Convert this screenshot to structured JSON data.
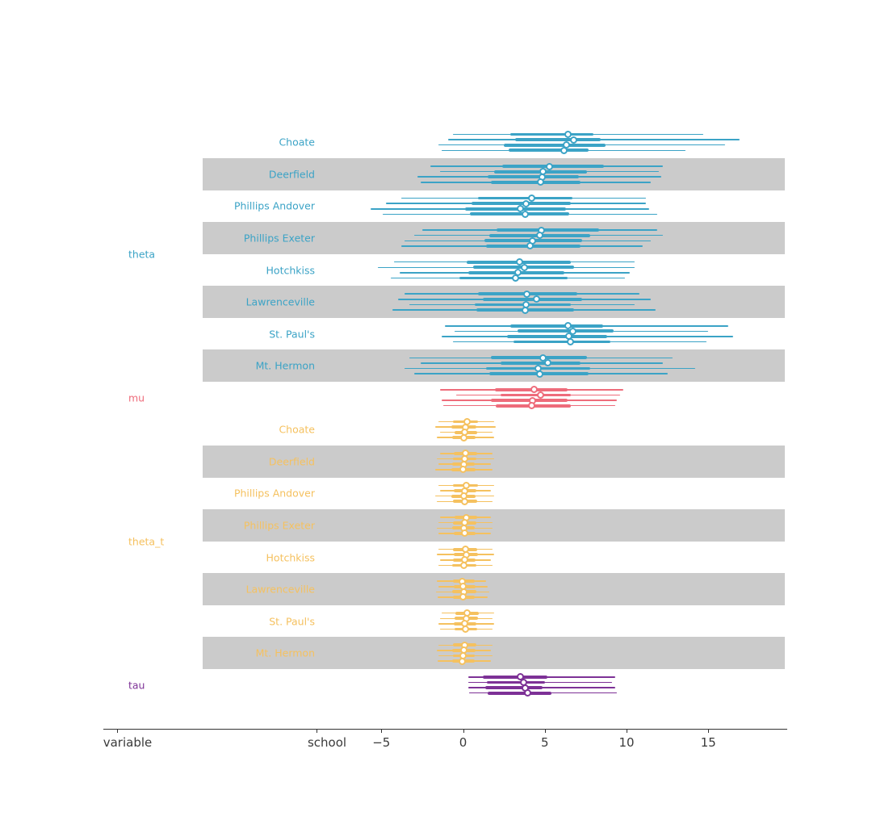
{
  "colors": {
    "blue": "#3BA3C6",
    "red": "#EE6C7B",
    "orange": "#F5C15F",
    "purple": "#7D3196",
    "band": "#CBCBCB",
    "axis_text": "#3A3A3A"
  },
  "chart_data": {
    "type": "forest",
    "description": "Forest plot of posterior credible intervals (4 chains per row): thin line = wide credible interval, thick line = interquartile interval, white dot = median. Values in chains are [lower, q25, median, q75, upper].",
    "x_axis": {
      "tick_labels": [
        "−5",
        "0",
        "5",
        "10",
        "15"
      ],
      "tick_values": [
        -5,
        0,
        5,
        10,
        15
      ],
      "category_labels": [
        "variable",
        "school"
      ],
      "xlim": [
        -22,
        19.7
      ],
      "grid": false
    },
    "groups": [
      {
        "name": "theta",
        "color": "blue",
        "rows": [
          {
            "school": "Choate",
            "shaded": false,
            "chains": [
              [
                -0.6,
                2.9,
                6.4,
                8.0,
                14.7
              ],
              [
                -0.9,
                3.2,
                6.75,
                8.4,
                16.9
              ],
              [
                -1.5,
                2.5,
                6.3,
                8.7,
                16.0
              ],
              [
                -1.3,
                2.8,
                6.15,
                7.7,
                13.6
              ]
            ]
          },
          {
            "school": "Deerfield",
            "shaded": true,
            "chains": [
              [
                -2.0,
                2.4,
                5.3,
                8.6,
                12.2
              ],
              [
                -1.4,
                1.9,
                4.9,
                7.6,
                12.0
              ],
              [
                -2.8,
                1.5,
                4.85,
                7.1,
                12.1
              ],
              [
                -2.6,
                1.7,
                4.75,
                7.2,
                11.5
              ]
            ]
          },
          {
            "school": "Phillips Andover",
            "shaded": false,
            "chains": [
              [
                -3.8,
                0.9,
                4.2,
                6.7,
                11.2
              ],
              [
                -4.7,
                0.5,
                3.85,
                6.6,
                11.2
              ],
              [
                -5.65,
                0.1,
                3.5,
                6.3,
                11.4
              ],
              [
                -4.9,
                0.4,
                3.8,
                6.5,
                11.9
              ]
            ]
          },
          {
            "school": "Phillips Exeter",
            "shaded": true,
            "chains": [
              [
                -2.5,
                2.05,
                4.8,
                8.3,
                11.9
              ],
              [
                -3.0,
                1.6,
                4.7,
                7.8,
                12.2
              ],
              [
                -3.6,
                1.3,
                4.25,
                7.3,
                11.5
              ],
              [
                -3.8,
                1.4,
                4.1,
                7.2,
                11.0
              ]
            ]
          },
          {
            "school": "Hotchkiss",
            "shaded": false,
            "chains": [
              [
                -4.2,
                0.2,
                3.45,
                6.6,
                10.5
              ],
              [
                -5.2,
                0.6,
                3.75,
                6.8,
                10.5
              ],
              [
                -3.9,
                0.3,
                3.35,
                6.2,
                10.2
              ],
              [
                -4.4,
                -0.2,
                3.2,
                6.4,
                9.9
              ]
            ]
          },
          {
            "school": "Lawrenceville",
            "shaded": true,
            "chains": [
              [
                -3.6,
                0.9,
                3.9,
                7.0,
                10.8
              ],
              [
                -4.0,
                1.2,
                4.5,
                7.3,
                11.5
              ],
              [
                -3.3,
                0.7,
                3.85,
                6.6,
                10.5
              ],
              [
                -4.3,
                0.8,
                3.8,
                6.8,
                11.8
              ]
            ]
          },
          {
            "school": "St. Paul's",
            "shaded": false,
            "chains": [
              [
                -1.1,
                2.9,
                6.4,
                8.55,
                16.2
              ],
              [
                -0.5,
                3.35,
                6.7,
                9.2,
                15.0
              ],
              [
                -1.3,
                2.7,
                6.45,
                8.8,
                16.5
              ],
              [
                -0.6,
                3.1,
                6.55,
                9.0,
                14.9
              ]
            ]
          },
          {
            "school": "Mt. Hermon",
            "shaded": true,
            "chains": [
              [
                -3.3,
                1.7,
                4.9,
                7.6,
                12.8
              ],
              [
                -2.6,
                2.3,
                5.2,
                7.2,
                12.2
              ],
              [
                -3.6,
                1.4,
                4.6,
                7.8,
                14.2
              ],
              [
                -3.0,
                1.6,
                4.7,
                7.7,
                12.5
              ]
            ]
          }
        ]
      },
      {
        "name": "mu",
        "color": "red",
        "rows": [
          {
            "school": "",
            "shaded": false,
            "chains": [
              [
                -1.4,
                1.95,
                4.35,
                6.4,
                9.8
              ],
              [
                -0.4,
                2.3,
                4.75,
                6.6,
                9.6
              ],
              [
                -1.3,
                1.7,
                4.25,
                6.4,
                9.4
              ],
              [
                -1.2,
                2.0,
                4.2,
                6.6,
                9.3
              ]
            ]
          }
        ]
      },
      {
        "name": "theta_t",
        "color": "orange",
        "rows": [
          {
            "school": "Choate",
            "shaded": false,
            "chains": [
              [
                -1.5,
                -0.6,
                0.25,
                0.9,
                1.9
              ],
              [
                -1.7,
                -0.7,
                0.15,
                0.8,
                2.0
              ],
              [
                -1.4,
                -0.5,
                0.1,
                0.85,
                1.8
              ],
              [
                -1.6,
                -0.65,
                0.05,
                0.75,
                1.9
              ]
            ]
          },
          {
            "school": "Deerfield",
            "shaded": true,
            "chains": [
              [
                -1.4,
                -0.55,
                0.15,
                0.85,
                1.8
              ],
              [
                -1.6,
                -0.6,
                0.1,
                0.8,
                1.9
              ],
              [
                -1.5,
                -0.65,
                0.05,
                0.7,
                1.7
              ],
              [
                -1.7,
                -0.7,
                0.0,
                0.75,
                1.8
              ]
            ]
          },
          {
            "school": "Phillips Andover",
            "shaded": false,
            "chains": [
              [
                -1.5,
                -0.6,
                0.2,
                0.9,
                1.9
              ],
              [
                -1.4,
                -0.55,
                0.1,
                0.8,
                1.7
              ],
              [
                -1.7,
                -0.7,
                0.05,
                0.75,
                1.9
              ],
              [
                -1.6,
                -0.6,
                0.1,
                0.85,
                1.8
              ]
            ]
          },
          {
            "school": "Phillips Exeter",
            "shaded": true,
            "chains": [
              [
                -1.4,
                -0.5,
                0.2,
                0.85,
                1.7
              ],
              [
                -1.5,
                -0.6,
                0.1,
                0.8,
                1.8
              ],
              [
                -1.6,
                -0.65,
                0.05,
                0.7,
                1.8
              ],
              [
                -1.5,
                -0.55,
                0.1,
                0.75,
                1.7
              ]
            ]
          },
          {
            "school": "Hotchkiss",
            "shaded": false,
            "chains": [
              [
                -1.5,
                -0.6,
                0.15,
                0.85,
                1.8
              ],
              [
                -1.6,
                -0.55,
                0.2,
                0.9,
                1.9
              ],
              [
                -1.4,
                -0.6,
                0.1,
                0.75,
                1.7
              ],
              [
                -1.5,
                -0.65,
                0.05,
                0.8,
                1.8
              ]
            ]
          },
          {
            "school": "Lawrenceville",
            "shaded": true,
            "chains": [
              [
                -1.6,
                -0.6,
                -0.05,
                0.7,
                1.4
              ],
              [
                -1.5,
                -0.55,
                0.0,
                0.75,
                1.5
              ],
              [
                -1.65,
                -0.65,
                0.05,
                0.8,
                1.6
              ],
              [
                -1.55,
                -0.6,
                0.0,
                0.7,
                1.5
              ]
            ]
          },
          {
            "school": "St. Paul's",
            "shaded": false,
            "chains": [
              [
                -1.3,
                -0.45,
                0.25,
                0.95,
                1.9
              ],
              [
                -1.4,
                -0.5,
                0.2,
                0.9,
                1.8
              ],
              [
                -1.5,
                -0.55,
                0.1,
                0.8,
                1.9
              ],
              [
                -1.4,
                -0.5,
                0.15,
                0.85,
                1.8
              ]
            ]
          },
          {
            "school": "Mt. Hermon",
            "shaded": true,
            "chains": [
              [
                -1.5,
                -0.6,
                0.1,
                0.8,
                1.8
              ],
              [
                -1.6,
                -0.65,
                0.05,
                0.75,
                1.7
              ],
              [
                -1.5,
                -0.6,
                0.0,
                0.7,
                1.8
              ],
              [
                -1.55,
                -0.65,
                -0.05,
                0.7,
                1.7
              ]
            ]
          }
        ]
      },
      {
        "name": "tau",
        "color": "purple",
        "rows": [
          {
            "school": "",
            "shaded": false,
            "chains": [
              [
                0.3,
                1.2,
                3.5,
                5.15,
                9.3
              ],
              [
                0.3,
                1.45,
                3.7,
                5.0,
                9.1
              ],
              [
                0.3,
                1.35,
                3.8,
                4.85,
                9.3
              ],
              [
                0.35,
                1.5,
                3.95,
                5.4,
                9.4
              ]
            ]
          }
        ]
      }
    ]
  }
}
